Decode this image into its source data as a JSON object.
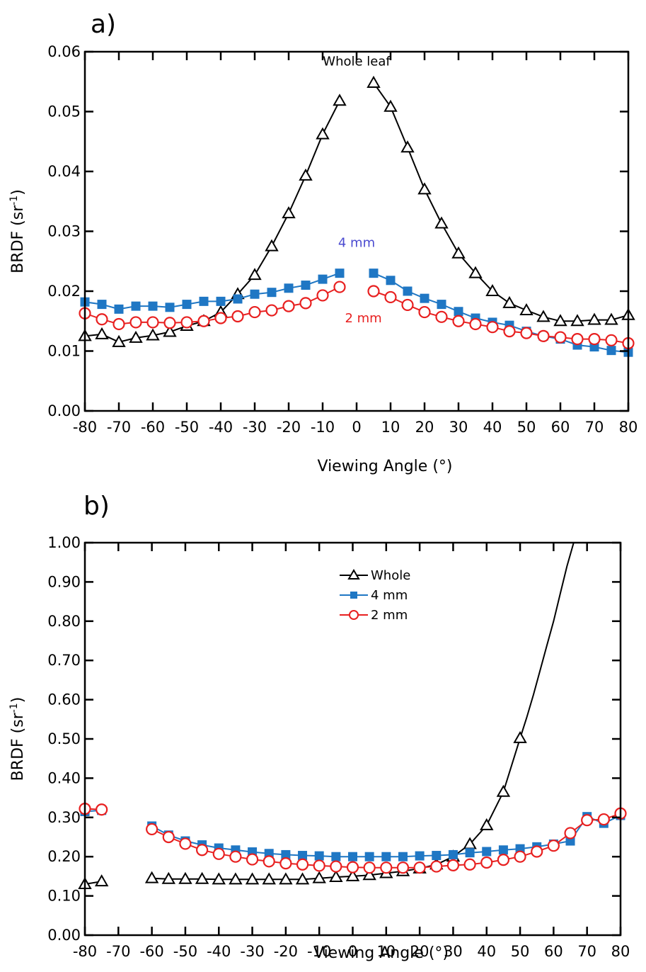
{
  "chart_data": [
    {
      "type": "line",
      "panel_label": "a)",
      "xlabel": "Viewing Angle (°)",
      "ylabel_main": "BRDF (sr",
      "ylabel_sup": "-1",
      "ylabel_close": ")",
      "xlim": [
        -80,
        80
      ],
      "ylim": [
        0,
        0.06
      ],
      "xticks": [
        -80,
        -70,
        -60,
        -50,
        -40,
        -30,
        -20,
        -10,
        0,
        10,
        20,
        30,
        40,
        50,
        60,
        70,
        80
      ],
      "yticks": [
        0,
        0.01,
        0.02,
        0.03,
        0.04,
        0.05,
        0.06
      ],
      "ytick_labels": [
        "0.00",
        "0.01",
        "0.02",
        "0.03",
        "0.04",
        "0.05",
        "0.06"
      ],
      "grid": false,
      "series": [
        {
          "key": "whole",
          "color": "#000000",
          "marker": "triangle",
          "segments": [
            {
              "x": [
                -80,
                -75,
                -70,
                -65,
                -60,
                -55,
                -50,
                -45,
                -40,
                -35,
                -30,
                -25,
                -20,
                -15,
                -10,
                -5
              ],
              "y": [
                0.0125,
                0.0128,
                0.0115,
                0.0122,
                0.0126,
                0.0132,
                0.0142,
                0.015,
                0.0165,
                0.0195,
                0.0227,
                0.0275,
                0.033,
                0.0393,
                0.0462,
                0.0518
              ]
            },
            {
              "x": [
                5,
                10,
                15,
                20,
                25,
                30,
                35,
                40,
                45,
                50,
                55,
                60,
                65,
                70,
                75,
                80
              ],
              "y": [
                0.0548,
                0.0508,
                0.044,
                0.037,
                0.0313,
                0.0263,
                0.023,
                0.02,
                0.018,
                0.0168,
                0.0157,
                0.015,
                0.015,
                0.0152,
                0.0152,
                0.016
              ]
            }
          ]
        },
        {
          "key": "4mm",
          "color": "#1f77c4",
          "marker": "square",
          "segments": [
            {
              "x": [
                -80,
                -75,
                -70,
                -65,
                -60,
                -55,
                -50,
                -45,
                -40,
                -35,
                -30,
                -25,
                -20,
                -15,
                -10,
                -5
              ],
              "y": [
                0.0182,
                0.0178,
                0.017,
                0.0175,
                0.0175,
                0.0173,
                0.0178,
                0.0183,
                0.0183,
                0.0187,
                0.0195,
                0.0198,
                0.0205,
                0.021,
                0.022,
                0.023
              ]
            },
            {
              "x": [
                5,
                10,
                15,
                20,
                25,
                30,
                35,
                40,
                45,
                50,
                55,
                60,
                65,
                70,
                75,
                80
              ],
              "y": [
                0.023,
                0.0218,
                0.02,
                0.0188,
                0.0178,
                0.0166,
                0.0155,
                0.0148,
                0.0143,
                0.0133,
                0.0125,
                0.012,
                0.011,
                0.0107,
                0.0101,
                0.0098
              ]
            }
          ]
        },
        {
          "key": "2mm",
          "color": "#e82020",
          "marker": "circle",
          "segments": [
            {
              "x": [
                -80,
                -75,
                -70,
                -65,
                -60,
                -55,
                -50,
                -45,
                -40,
                -35,
                -30,
                -25,
                -20,
                -15,
                -10,
                -5
              ],
              "y": [
                0.0163,
                0.0153,
                0.0145,
                0.0148,
                0.0148,
                0.0147,
                0.0148,
                0.015,
                0.0155,
                0.0158,
                0.0165,
                0.0168,
                0.0175,
                0.018,
                0.0193,
                0.0207
              ]
            },
            {
              "x": [
                5,
                10,
                15,
                20,
                25,
                30,
                35,
                40,
                45,
                50,
                55,
                60,
                65,
                70,
                75,
                80
              ],
              "y": [
                0.02,
                0.019,
                0.0177,
                0.0165,
                0.0157,
                0.015,
                0.0145,
                0.014,
                0.0133,
                0.013,
                0.0125,
                0.0123,
                0.012,
                0.012,
                0.0118,
                0.0113
              ]
            }
          ]
        }
      ],
      "annotations": [
        {
          "text": "Whole leaf",
          "x": 0,
          "y": 0.0577,
          "color": "#000000"
        },
        {
          "text": "4 mm",
          "x": 0,
          "y": 0.0274,
          "color": "#4a4ad0"
        },
        {
          "text": "2 mm",
          "x": 2,
          "y": 0.0148,
          "color": "#e82020"
        }
      ]
    },
    {
      "type": "line",
      "panel_label": "b)",
      "xlabel": "Viewing Angle (°)",
      "ylabel_main": "BRDF (sr",
      "ylabel_sup": "-1",
      "ylabel_close": ")",
      "xlim": [
        -80,
        80
      ],
      "ylim": [
        0,
        1
      ],
      "xticks": [
        -80,
        -70,
        -60,
        -50,
        -40,
        -30,
        -20,
        -10,
        0,
        10,
        20,
        30,
        40,
        50,
        60,
        70,
        80
      ],
      "yticks": [
        0,
        0.1,
        0.2,
        0.3,
        0.4,
        0.5,
        0.6,
        0.7,
        0.8,
        0.9,
        1.0
      ],
      "ytick_labels": [
        "0.00",
        "0.10",
        "0.20",
        "0.30",
        "0.40",
        "0.50",
        "0.60",
        "0.70",
        "0.80",
        "0.90",
        "1.00"
      ],
      "grid": false,
      "legend_position": "top-center",
      "series": [
        {
          "key": "whole",
          "name": "Whole",
          "color": "#000000",
          "marker": "triangle",
          "segments": [
            {
              "x": [
                -80,
                -75
              ],
              "y": [
                0.13,
                0.137
              ]
            },
            {
              "x": [
                -60,
                -55,
                -50,
                -45,
                -40,
                -35,
                -30,
                -25,
                -20,
                -15,
                -10,
                -5,
                0,
                5,
                10,
                15,
                20,
                25,
                30,
                35,
                40,
                45,
                50
              ],
              "y": [
                0.145,
                0.143,
                0.143,
                0.143,
                0.142,
                0.142,
                0.142,
                0.142,
                0.142,
                0.142,
                0.145,
                0.148,
                0.15,
                0.153,
                0.158,
                0.163,
                0.17,
                0.18,
                0.2,
                0.232,
                0.28,
                0.365,
                0.502
              ]
            }
          ],
          "line_extension": {
            "x": [
              50,
              52,
              54,
              56,
              58,
              60,
              62,
              64,
              66
            ],
            "y": [
              0.502,
              0.555,
              0.613,
              0.675,
              0.738,
              0.8,
              0.87,
              0.94,
              1.0
            ]
          }
        },
        {
          "key": "4mm",
          "name": "4 mm",
          "color": "#1f77c4",
          "marker": "square",
          "segments": [
            {
              "x": [
                -80,
                -75
              ],
              "y": [
                0.315,
                0.318
              ]
            },
            {
              "x": [
                -60,
                -55,
                -50,
                -45,
                -40,
                -35,
                -30,
                -25,
                -20,
                -15,
                -10,
                -5,
                0,
                5,
                10,
                15,
                20,
                25,
                30,
                35,
                40,
                45,
                50,
                55,
                60,
                65,
                70,
                75,
                80
              ],
              "y": [
                0.278,
                0.255,
                0.24,
                0.23,
                0.222,
                0.217,
                0.212,
                0.208,
                0.205,
                0.203,
                0.202,
                0.2,
                0.2,
                0.2,
                0.2,
                0.2,
                0.202,
                0.203,
                0.205,
                0.21,
                0.213,
                0.217,
                0.22,
                0.225,
                0.232,
                0.24,
                0.302,
                0.285,
                0.305
              ]
            }
          ]
        },
        {
          "key": "2mm",
          "name": "2 mm",
          "color": "#e82020",
          "marker": "circle",
          "segments": [
            {
              "x": [
                -80,
                -75
              ],
              "y": [
                0.322,
                0.32
              ]
            },
            {
              "x": [
                -60,
                -55,
                -50,
                -45,
                -40,
                -35,
                -30,
                -25,
                -20,
                -15,
                -10,
                -5,
                0,
                5,
                10,
                15,
                20,
                25,
                30,
                35,
                40,
                45,
                50,
                55,
                60,
                65,
                70,
                75,
                80
              ],
              "y": [
                0.27,
                0.25,
                0.233,
                0.217,
                0.207,
                0.2,
                0.193,
                0.188,
                0.183,
                0.18,
                0.177,
                0.175,
                0.173,
                0.172,
                0.172,
                0.172,
                0.172,
                0.175,
                0.178,
                0.18,
                0.185,
                0.192,
                0.2,
                0.213,
                0.228,
                0.26,
                0.293,
                0.295,
                0.31
              ]
            }
          ]
        }
      ]
    }
  ]
}
